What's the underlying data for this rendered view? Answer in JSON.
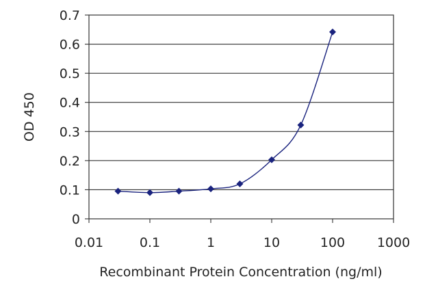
{
  "chart_data": {
    "type": "scatter",
    "title": "",
    "xlabel": "Recombinant Protein Concentration (ng/ml)",
    "ylabel": "OD 450",
    "xscale": "log",
    "xlim": [
      0.01,
      1000
    ],
    "ylim": [
      0,
      0.7
    ],
    "xticks": [
      "0.01",
      "0.1",
      "1",
      "10",
      "100",
      "1000"
    ],
    "yticks": [
      "0",
      "0.1",
      "0.2",
      "0.3",
      "0.4",
      "0.5",
      "0.6",
      "0.7"
    ],
    "grid": "horizontal",
    "legend": "none",
    "series": [
      {
        "color": "#1a237e",
        "marker": "diamond",
        "line": "smooth",
        "x": [
          0.03,
          0.1,
          0.3,
          1,
          3,
          10,
          30,
          100
        ],
        "y": [
          0.095,
          0.09,
          0.095,
          0.103,
          0.12,
          0.203,
          0.322,
          0.642
        ]
      }
    ]
  }
}
